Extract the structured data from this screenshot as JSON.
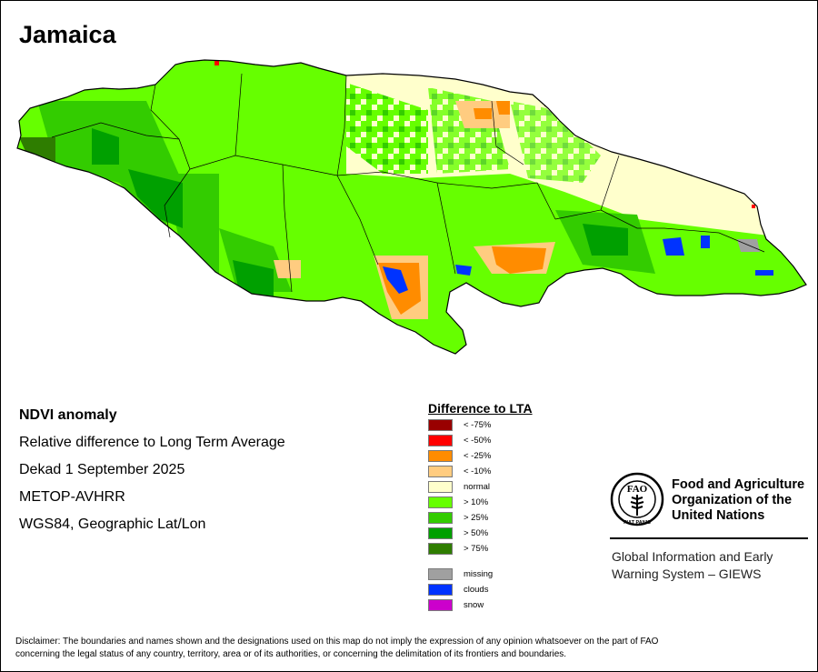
{
  "map": {
    "title": "Jamaica",
    "country": "Jamaica"
  },
  "info": {
    "heading": "NDVI anomaly",
    "line1": "Relative difference to Long Term Average",
    "line2": "Dekad 1 September 2025",
    "line3": "METOP-AVHRR",
    "line4": "WGS84, Geographic Lat/Lon"
  },
  "legend": {
    "title": "Difference to LTA",
    "items": [
      {
        "label": "< -75%",
        "color": "#990000"
      },
      {
        "label": "< -50%",
        "color": "#ff0000"
      },
      {
        "label": "< -25%",
        "color": "#ff8c00"
      },
      {
        "label": "< -10%",
        "color": "#ffcc80"
      },
      {
        "label": "normal",
        "color": "#ffffcc"
      },
      {
        "label": "> 10%",
        "color": "#66ff00"
      },
      {
        "label": "> 25%",
        "color": "#33cc00"
      },
      {
        "label": "> 50%",
        "color": "#00a000"
      },
      {
        "label": "> 75%",
        "color": "#2e7d00"
      },
      {
        "label": "missing",
        "color": "#a0a0a0"
      },
      {
        "label": "clouds",
        "color": "#0033ff"
      },
      {
        "label": "snow",
        "color": "#cc00cc"
      }
    ]
  },
  "organization": {
    "logo_text": "FAO",
    "logo_motto": "FIAT PANIS",
    "name_line1": "Food and Agriculture",
    "name_line2": "Organization of the",
    "name_line3": "United Nations",
    "program_line1": "Global Information and Early",
    "program_line2": "Warning System – GIEWS"
  },
  "disclaimer": {
    "line1": "Disclaimer: The boundaries and names shown and the designations used on this map do not imply the expression of any opinion whatsoever on the part of FAO",
    "line2": "concerning the legal status of any country, territory, area or of its authorities, or concerning the delimitation of its frontiers and boundaries."
  }
}
